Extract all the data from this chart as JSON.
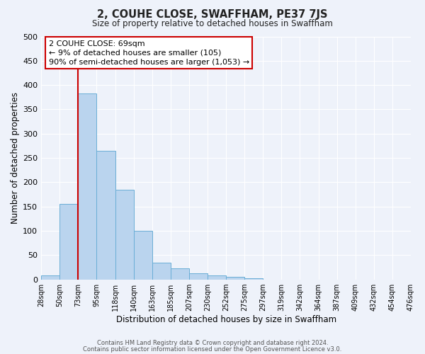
{
  "title": "2, COUHE CLOSE, SWAFFHAM, PE37 7JS",
  "subtitle": "Size of property relative to detached houses in Swaffham",
  "xlabel": "Distribution of detached houses by size in Swaffham",
  "ylabel": "Number of detached properties",
  "bar_color": "#bad4ee",
  "bar_edge_color": "#6aaed6",
  "background_color": "#eef2fa",
  "grid_color": "#ffffff",
  "bin_labels": [
    "28sqm",
    "50sqm",
    "73sqm",
    "95sqm",
    "118sqm",
    "140sqm",
    "163sqm",
    "185sqm",
    "207sqm",
    "230sqm",
    "252sqm",
    "275sqm",
    "297sqm",
    "319sqm",
    "342sqm",
    "364sqm",
    "387sqm",
    "409sqm",
    "432sqm",
    "454sqm",
    "476sqm"
  ],
  "bar_values": [
    8,
    155,
    382,
    265,
    185,
    100,
    35,
    22,
    12,
    8,
    5,
    2,
    0,
    0,
    0,
    0,
    0,
    0,
    0,
    0
  ],
  "ylim": [
    0,
    500
  ],
  "yticks": [
    0,
    50,
    100,
    150,
    200,
    250,
    300,
    350,
    400,
    450,
    500
  ],
  "vline_x_index": 2,
  "vline_color": "#cc0000",
  "annotation_title": "2 COUHE CLOSE: 69sqm",
  "annotation_line1": "← 9% of detached houses are smaller (105)",
  "annotation_line2": "90% of semi-detached houses are larger (1,053) →",
  "annotation_box_color": "#ffffff",
  "annotation_box_edge": "#cc0000",
  "footer_line1": "Contains HM Land Registry data © Crown copyright and database right 2024.",
  "footer_line2": "Contains public sector information licensed under the Open Government Licence v3.0."
}
